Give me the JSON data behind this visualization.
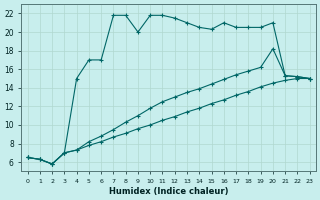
{
  "xlabel": "Humidex (Indice chaleur)",
  "bg_color": "#c8eeed",
  "line_color": "#006666",
  "grid_color": "#b0d8d0",
  "xlim": [
    -0.5,
    23.5
  ],
  "ylim": [
    5.0,
    23.0
  ],
  "xticks": [
    0,
    1,
    2,
    3,
    4,
    5,
    6,
    7,
    8,
    9,
    10,
    11,
    12,
    13,
    14,
    15,
    16,
    17,
    18,
    19,
    20,
    21,
    22,
    23
  ],
  "yticks": [
    6,
    8,
    10,
    12,
    14,
    16,
    18,
    20,
    22
  ],
  "line1_x": [
    0,
    1,
    2,
    3,
    4,
    5,
    6,
    7,
    8,
    9,
    10,
    11,
    12,
    13,
    14,
    15,
    16,
    17,
    18,
    19,
    20,
    21,
    22,
    23
  ],
  "line1_y": [
    6.5,
    6.3,
    5.8,
    7.0,
    15.0,
    17.0,
    17.0,
    21.8,
    21.8,
    20.0,
    21.8,
    21.8,
    21.5,
    21.0,
    20.5,
    20.3,
    21.0,
    20.5,
    20.5,
    20.5,
    21.0,
    15.3,
    15.2,
    15.0
  ],
  "line2_x": [
    0,
    1,
    2,
    3,
    4,
    5,
    6,
    7,
    8,
    9,
    10,
    11,
    12,
    13,
    14,
    15,
    16,
    17,
    18,
    19,
    20,
    21,
    22,
    23
  ],
  "line2_y": [
    6.5,
    6.3,
    5.8,
    7.0,
    7.3,
    8.2,
    8.8,
    9.5,
    10.3,
    11.0,
    11.8,
    12.5,
    13.0,
    13.5,
    13.9,
    14.4,
    14.9,
    15.4,
    15.8,
    16.2,
    18.2,
    15.3,
    15.2,
    15.0
  ],
  "line3_x": [
    0,
    1,
    2,
    3,
    4,
    5,
    6,
    7,
    8,
    9,
    10,
    11,
    12,
    13,
    14,
    15,
    16,
    17,
    18,
    19,
    20,
    21,
    22,
    23
  ],
  "line3_y": [
    6.5,
    6.3,
    5.8,
    7.0,
    7.3,
    7.8,
    8.2,
    8.7,
    9.1,
    9.6,
    10.0,
    10.5,
    10.9,
    11.4,
    11.8,
    12.3,
    12.7,
    13.2,
    13.6,
    14.1,
    14.5,
    14.8,
    15.0,
    15.0
  ]
}
